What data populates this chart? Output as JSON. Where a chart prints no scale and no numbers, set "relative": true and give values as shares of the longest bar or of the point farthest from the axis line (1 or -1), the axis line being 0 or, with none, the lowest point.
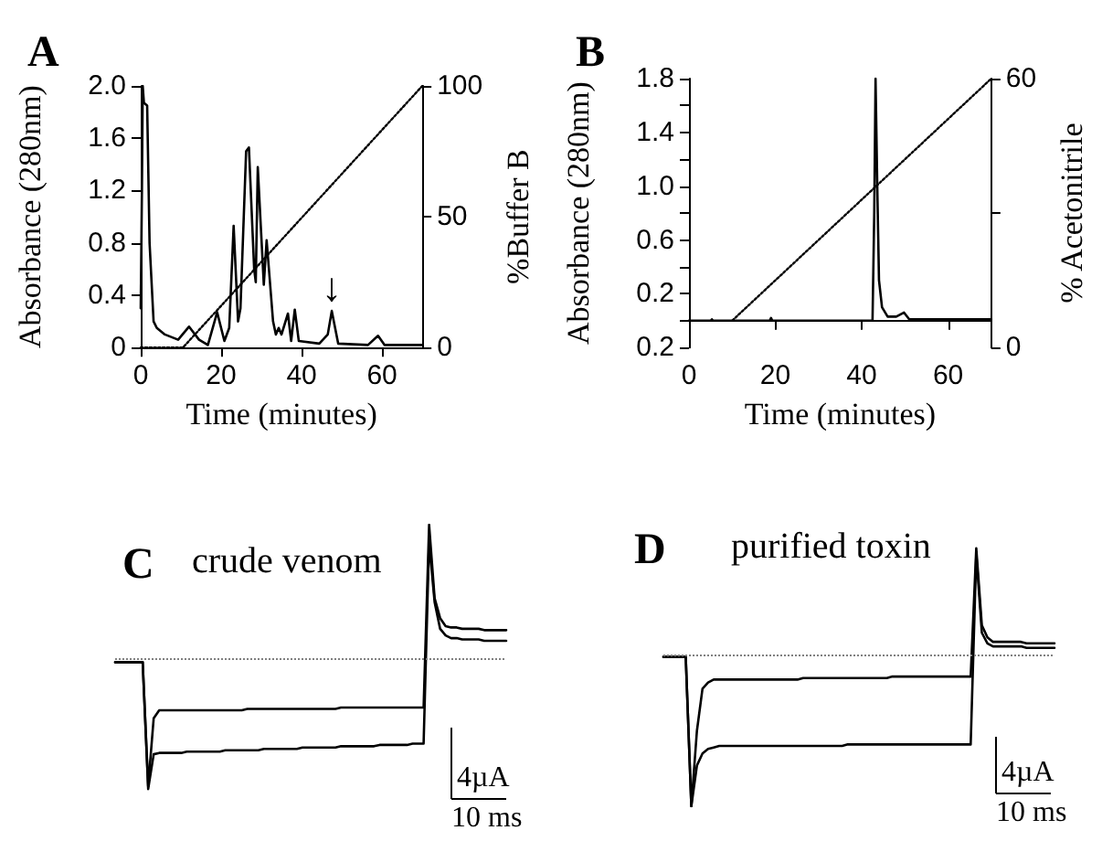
{
  "chart_data": [
    {
      "type": "line",
      "title": "A",
      "xlabel": "Time (minutes)",
      "ylabel": "Absorbance (280nm)",
      "y2label": "%Buffer B",
      "xlim": [
        0,
        70
      ],
      "xticks": [
        0,
        20,
        40,
        60
      ],
      "ylim": [
        0,
        2.0
      ],
      "yticks": [
        0,
        0.4,
        0.8,
        1.2,
        1.6,
        {
          "value": 2.0,
          "label": "2.0"
        }
      ],
      "y2lim": [
        0,
        100
      ],
      "y2ticks": [
        0,
        50,
        100
      ],
      "marker": "none",
      "grid": false,
      "series": [
        {
          "color": "#000000",
          "x": [
            0,
            0.3,
            0.5,
            0.8,
            1.6,
            2.2,
            3.2,
            4,
            6,
            9.3,
            12,
            14.5,
            16.7,
            19,
            20.8,
            22,
            23.1,
            24.2,
            24.8,
            26.2,
            26.9,
            28.2,
            28.6,
            29.1,
            30.6,
            31.3,
            32,
            32.9,
            33.6,
            34.3,
            35,
            36.6,
            37.4,
            38.3,
            39.3,
            44.4,
            46.5,
            47.5,
            49.1,
            56.5,
            59,
            60.6,
            70
          ],
          "values": [
            0.3,
            1.2,
            2.0,
            1.87,
            1.85,
            0.8,
            0.2,
            0.15,
            0.1,
            0.06,
            0.16,
            0.06,
            0.02,
            0.27,
            0.05,
            0.15,
            0.93,
            0.2,
            0.3,
            1.5,
            1.53,
            0.6,
            0.5,
            1.38,
            0.48,
            0.82,
            0.55,
            0.2,
            0.1,
            0.15,
            0.1,
            0.26,
            0.05,
            0.29,
            0.05,
            0.03,
            0.1,
            0.28,
            0.03,
            0.02,
            0.09,
            0.02,
            0.02
          ]
        },
        {
          "color": "#000000",
          "axis": "y2",
          "line_style": "dotted",
          "x": [
            0,
            10.5,
            70
          ],
          "values": [
            0,
            0,
            100
          ]
        }
      ],
      "annotations": [
        {
          "text": "↓",
          "x": 47.5,
          "y": 0.28
        }
      ]
    },
    {
      "type": "line",
      "title": "B",
      "xlabel": "Time (minutes)",
      "ylabel": "Absorbance (280nm)",
      "y2label": "% Acetonitrile",
      "xlim": [
        0,
        70
      ],
      "xticks": [
        0,
        20,
        40,
        60
      ],
      "ylim": [
        -0.2,
        1.8
      ],
      "yticks": [
        {
          "value": -0.2,
          "label": "0.2"
        },
        {
          "value": 0,
          "label": null
        },
        0.2,
        {
          "value": 0.4,
          "label": null
        },
        0.6,
        {
          "value": 0.8,
          "label": null
        },
        {
          "value": 1.0,
          "label": "1.0"
        },
        {
          "value": 1.2,
          "label": null
        },
        1.4,
        {
          "value": 1.6,
          "label": null
        },
        1.8
      ],
      "y2lim": [
        0,
        60
      ],
      "y2ticks": [
        0,
        {
          "value": 30,
          "label": null
        },
        60
      ],
      "marker": "none",
      "grid": false,
      "series": [
        {
          "color": "#000000",
          "x": [
            0,
            5,
            5.3,
            5.6,
            18.7,
            19,
            19.3,
            42.5,
            42.9,
            43.2,
            43.6,
            44,
            44.7,
            46,
            48,
            49.8,
            51,
            55,
            62,
            68,
            70
          ],
          "values": [
            0,
            0,
            0.01,
            0,
            0,
            0.02,
            0,
            0,
            0.8,
            1.8,
            1.0,
            0.3,
            0.1,
            0.03,
            0.03,
            0.06,
            0.01,
            0.01,
            0.01,
            0.01,
            0.01
          ]
        },
        {
          "color": "#000000",
          "axis": "y2",
          "line_style": "dotted",
          "x": [
            10,
            70
          ],
          "values": [
            6,
            60
          ]
        }
      ]
    },
    {
      "type": "line",
      "title": "C",
      "subtitle": "crude venom",
      "relative": true,
      "marker": "none",
      "grid": false,
      "categories": [
        null,
        null,
        null,
        null,
        null,
        null,
        null,
        null,
        null,
        null,
        null,
        null,
        null,
        null,
        null,
        null,
        null,
        null,
        null,
        null,
        null,
        null,
        null,
        null,
        null,
        null,
        null,
        null,
        null,
        null,
        null,
        null,
        null,
        null,
        null,
        null,
        null,
        null,
        null,
        null,
        null,
        null,
        null,
        null,
        null,
        null,
        null,
        null,
        null,
        null,
        null,
        null,
        null,
        null,
        null,
        null,
        null,
        null,
        null,
        null,
        null,
        null,
        null,
        null,
        null,
        null,
        null,
        null,
        null,
        null,
        null,
        null
      ],
      "series": [
        {
          "color": "#000000",
          "values": [
            -0.03,
            -0.03,
            -0.03,
            -0.03,
            -0.03,
            -0.03,
            -0.96,
            -0.45,
            -0.39,
            -0.39,
            -0.39,
            -0.39,
            -0.39,
            -0.39,
            -0.39,
            -0.39,
            -0.39,
            -0.39,
            -0.39,
            -0.39,
            -0.39,
            -0.39,
            -0.39,
            -0.39,
            -0.38,
            -0.38,
            -0.38,
            -0.38,
            -0.38,
            -0.38,
            -0.38,
            -0.38,
            -0.38,
            -0.38,
            -0.38,
            -0.38,
            -0.38,
            -0.38,
            -0.38,
            -0.38,
            -0.38,
            -0.37,
            -0.37,
            -0.37,
            -0.37,
            -0.37,
            -0.37,
            -0.37,
            -0.37,
            -0.37,
            -0.37,
            -0.37,
            -0.37,
            -0.37,
            -0.37,
            -0.37,
            -0.37,
            1.0,
            0.45,
            0.3,
            0.24,
            0.23,
            0.23,
            0.22,
            0.22,
            0.22,
            0.22,
            0.21,
            0.21,
            0.21,
            0.21,
            0.21
          ]
        },
        {
          "color": "#000000",
          "values": [
            -0.03,
            -0.03,
            -0.03,
            -0.03,
            -0.03,
            -0.03,
            -0.98,
            -0.72,
            -0.71,
            -0.71,
            -0.71,
            -0.71,
            -0.71,
            -0.7,
            -0.7,
            -0.7,
            -0.7,
            -0.7,
            -0.7,
            -0.7,
            -0.69,
            -0.69,
            -0.69,
            -0.69,
            -0.69,
            -0.69,
            -0.69,
            -0.68,
            -0.68,
            -0.68,
            -0.68,
            -0.68,
            -0.68,
            -0.68,
            -0.67,
            -0.67,
            -0.67,
            -0.67,
            -0.67,
            -0.67,
            -0.67,
            -0.66,
            -0.66,
            -0.66,
            -0.66,
            -0.66,
            -0.66,
            -0.66,
            -0.65,
            -0.65,
            -0.65,
            -0.65,
            -0.65,
            -0.65,
            -0.64,
            -0.64,
            -0.64,
            0.87,
            0.42,
            0.22,
            0.17,
            0.15,
            0.15,
            0.14,
            0.14,
            0.14,
            0.14,
            0.13,
            0.13,
            0.13,
            0.13,
            0.13
          ]
        }
      ],
      "ref_lines": [
        {
          "axis": "y",
          "value": 0,
          "line_style": "dotted",
          "color": "#808080"
        }
      ],
      "annotations": [
        "4µA",
        "10 ms"
      ]
    },
    {
      "type": "line",
      "title": "D",
      "subtitle": "purified toxin",
      "relative": true,
      "marker": "none",
      "grid": false,
      "categories": [
        null,
        null,
        null,
        null,
        null,
        null,
        null,
        null,
        null,
        null,
        null,
        null,
        null,
        null,
        null,
        null,
        null,
        null,
        null,
        null,
        null,
        null,
        null,
        null,
        null,
        null,
        null,
        null,
        null,
        null,
        null,
        null,
        null,
        null,
        null,
        null,
        null,
        null,
        null,
        null,
        null,
        null,
        null,
        null,
        null,
        null,
        null,
        null,
        null,
        null,
        null,
        null,
        null,
        null,
        null,
        null,
        null,
        null,
        null,
        null,
        null,
        null,
        null,
        null,
        null,
        null,
        null,
        null,
        null,
        null,
        null
      ],
      "series": [
        {
          "color": "#000000",
          "values": [
            -0.01,
            -0.01,
            -0.01,
            -0.01,
            -0.01,
            -1.0,
            -0.5,
            -0.22,
            -0.18,
            -0.16,
            -0.16,
            -0.16,
            -0.16,
            -0.16,
            -0.16,
            -0.16,
            -0.16,
            -0.16,
            -0.16,
            -0.16,
            -0.16,
            -0.16,
            -0.16,
            -0.16,
            -0.16,
            -0.15,
            -0.15,
            -0.15,
            -0.15,
            -0.15,
            -0.15,
            -0.15,
            -0.15,
            -0.15,
            -0.15,
            -0.15,
            -0.15,
            -0.15,
            -0.15,
            -0.15,
            -0.15,
            -0.14,
            -0.14,
            -0.14,
            -0.14,
            -0.14,
            -0.14,
            -0.14,
            -0.14,
            -0.14,
            -0.14,
            -0.14,
            -0.14,
            -0.14,
            -0.14,
            -0.14,
            0.71,
            0.2,
            0.12,
            0.09,
            0.09,
            0.09,
            0.09,
            0.09,
            0.09,
            0.08,
            0.08,
            0.08,
            0.08,
            0.08,
            0.08
          ]
        },
        {
          "color": "#000000",
          "values": [
            -0.01,
            -0.01,
            -0.01,
            -0.01,
            -0.01,
            -1.0,
            -0.73,
            -0.65,
            -0.62,
            -0.61,
            -0.6,
            -0.6,
            -0.6,
            -0.6,
            -0.6,
            -0.6,
            -0.6,
            -0.6,
            -0.6,
            -0.6,
            -0.6,
            -0.6,
            -0.6,
            -0.6,
            -0.6,
            -0.6,
            -0.6,
            -0.6,
            -0.6,
            -0.6,
            -0.6,
            -0.6,
            -0.6,
            -0.59,
            -0.59,
            -0.59,
            -0.59,
            -0.59,
            -0.59,
            -0.59,
            -0.59,
            -0.59,
            -0.59,
            -0.59,
            -0.59,
            -0.59,
            -0.59,
            -0.59,
            -0.59,
            -0.59,
            -0.59,
            -0.59,
            -0.59,
            -0.59,
            -0.59,
            -0.59,
            0.67,
            0.15,
            0.08,
            0.06,
            0.06,
            0.06,
            0.06,
            0.06,
            0.06,
            0.05,
            0.05,
            0.05,
            0.05,
            0.05,
            0.05
          ]
        }
      ],
      "ref_lines": [
        {
          "axis": "y",
          "value": 0,
          "line_style": "dotted",
          "color": "#808080"
        }
      ],
      "annotations": [
        "4µA",
        "10 ms"
      ]
    }
  ]
}
